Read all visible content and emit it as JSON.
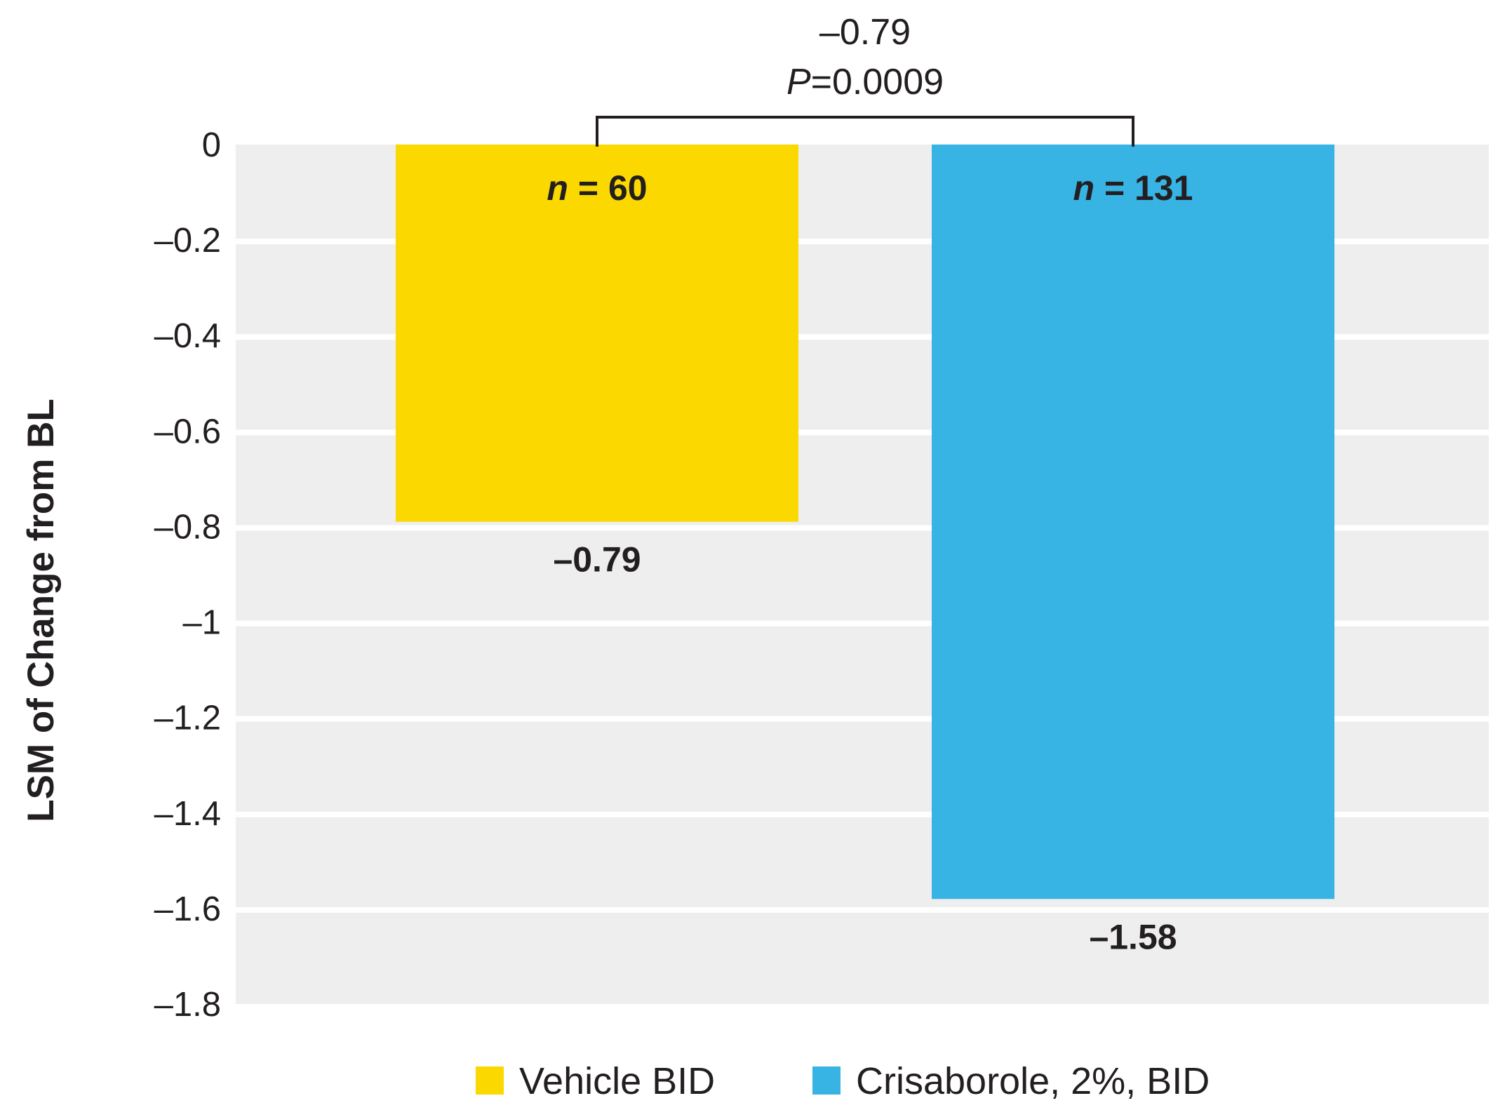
{
  "chart_data": {
    "type": "bar",
    "title": "",
    "xlabel": "",
    "ylabel": "LSM of Change from BL",
    "ylim": [
      -1.8,
      0
    ],
    "y_ticks": [
      0,
      -0.2,
      -0.4,
      -0.6,
      -0.8,
      -1,
      -1.2,
      -1.4,
      -1.6,
      -1.8
    ],
    "y_tick_labels": [
      "0",
      "–0.2",
      "–0.4",
      "–0.6",
      "–0.8",
      "–1",
      "–1.2",
      "–1.4",
      "–1.6",
      "–1.8"
    ],
    "grid": true,
    "background": "#eeeeef",
    "categories": [
      "Vehicle BID",
      "Crisaborole, 2%, BID"
    ],
    "values": [
      -0.79,
      -1.58
    ],
    "value_labels": [
      "–0.79",
      "–1.58"
    ],
    "n_labels": [
      {
        "prefix": "n",
        "rest": " = 60"
      },
      {
        "prefix": "n",
        "rest": " = 131"
      }
    ],
    "colors": [
      "#fad800",
      "#37b3e4"
    ],
    "comparison": {
      "difference": "–0.79",
      "p_prefix": "P",
      "p_rest": "=0.0009"
    },
    "legend": {
      "position": "bottom",
      "entries": [
        {
          "label": "Vehicle BID",
          "color": "#fad800"
        },
        {
          "label": "Crisaborole, 2%, BID",
          "color": "#37b3e4"
        }
      ]
    }
  }
}
